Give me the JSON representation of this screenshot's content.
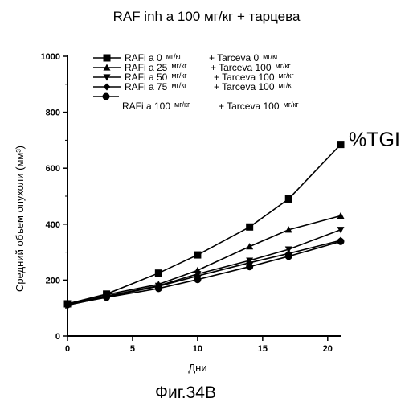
{
  "figure": {
    "title": "RAF inh а 100 мг/кг + тарцева",
    "tgi_label": "%TGI",
    "caption": "Фиг.34B"
  },
  "chart_data": {
    "type": "line",
    "title": "RAF inh а 100 мг/кг + тарцева",
    "xlabel": "Дни",
    "ylabel": "Средний объем опухоли (мм³)",
    "xlim": [
      0,
      21
    ],
    "ylim": [
      0,
      1000
    ],
    "xticks": [
      0,
      5,
      10,
      15,
      20
    ],
    "yticks": [
      0,
      200,
      400,
      600,
      800,
      1000
    ],
    "grid": false,
    "legend_position": "top-left",
    "x": [
      0,
      3,
      7,
      10,
      14,
      17,
      21
    ],
    "series": [
      {
        "name": "RAFi а 0 мг/кг + Tarceva 0 мг/кг",
        "legend": {
          "a": "RAFi а 0",
          "b": "мг/кг",
          "c": "+ Tarceva 0",
          "d": "мг/кг"
        },
        "marker": "square",
        "values": [
          115,
          150,
          225,
          290,
          390,
          490,
          685
        ]
      },
      {
        "name": "RAFi а 25 мг/кг + Tarceva 100 мг/кг",
        "legend": {
          "a": "RAFi а 25",
          "b": "мг/кг",
          "c": "+ Tarceva 100",
          "d": "мг/кг"
        },
        "marker": "triangle-up",
        "values": [
          115,
          148,
          185,
          235,
          320,
          380,
          430
        ]
      },
      {
        "name": "RAFi а 50 мг/кг + Tarceva 100 мг/кг",
        "legend": {
          "a": "RAFi а 50",
          "b": "мг/кг",
          "c": "+ Tarceva 100",
          "d": "мг/кг"
        },
        "marker": "triangle-down",
        "values": [
          112,
          143,
          180,
          222,
          270,
          310,
          380
        ]
      },
      {
        "name": "RAFi а 75 мг/кг + Tarceva 100 мг/кг",
        "legend": {
          "a": "RAFi а 75",
          "b": "мг/кг",
          "c": "+ Tarceva 100",
          "d": "мг/кг"
        },
        "marker": "diamond",
        "values": [
          110,
          140,
          178,
          215,
          262,
          295,
          342
        ]
      },
      {
        "name": "RAFi а 100 мг/кг + Tarceva 100 мг/кг",
        "legend": {
          "a": "RAFi а 100",
          "b": "мг/кг",
          "c": "+ Tarceva 100",
          "d": "мг/кг"
        },
        "marker": "circle",
        "values": [
          112,
          138,
          170,
          202,
          248,
          285,
          338
        ]
      }
    ]
  }
}
